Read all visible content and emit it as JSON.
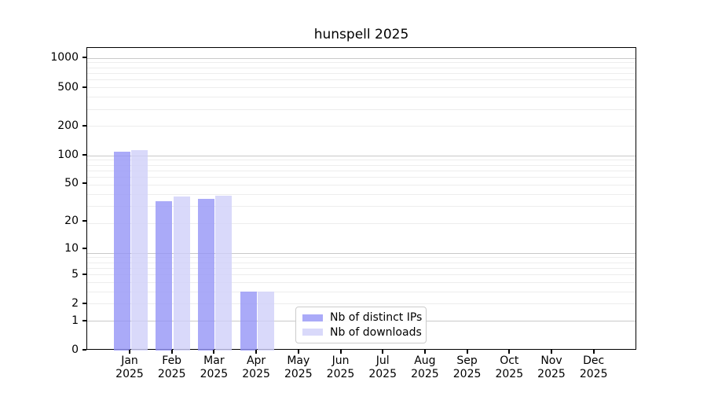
{
  "chart_data": {
    "type": "bar",
    "title": "hunspell 2025",
    "grid": "horizontal",
    "legend_position": "lower center-right inside plot",
    "y_axis": {
      "scale": "log10(1+x)",
      "ticks": [
        0,
        1,
        2,
        5,
        10,
        20,
        50,
        100,
        200,
        500,
        1000
      ],
      "top_value": 1280
    },
    "categories": [
      {
        "month": "Jan",
        "year": "2025"
      },
      {
        "month": "Feb",
        "year": "2025"
      },
      {
        "month": "Mar",
        "year": "2025"
      },
      {
        "month": "Apr",
        "year": "2025"
      },
      {
        "month": "May",
        "year": "2025"
      },
      {
        "month": "Jun",
        "year": "2025"
      },
      {
        "month": "Jul",
        "year": "2025"
      },
      {
        "month": "Aug",
        "year": "2025"
      },
      {
        "month": "Sep",
        "year": "2025"
      },
      {
        "month": "Oct",
        "year": "2025"
      },
      {
        "month": "Nov",
        "year": "2025"
      },
      {
        "month": "Dec",
        "year": "2025"
      }
    ],
    "series": [
      {
        "key": "distinct-ips",
        "name": "Nb of distinct IPs",
        "color": "#9595f6",
        "alpha": 0.8,
        "values": [
          110,
          33,
          35,
          3,
          0,
          0,
          0,
          0,
          0,
          0,
          0,
          0
        ]
      },
      {
        "key": "downloads",
        "name": "Nb of downloads",
        "color": "#d0d0f9",
        "alpha": 0.8,
        "values": [
          114,
          37,
          38,
          3,
          0,
          0,
          0,
          0,
          0,
          0,
          0,
          0
        ]
      }
    ]
  }
}
